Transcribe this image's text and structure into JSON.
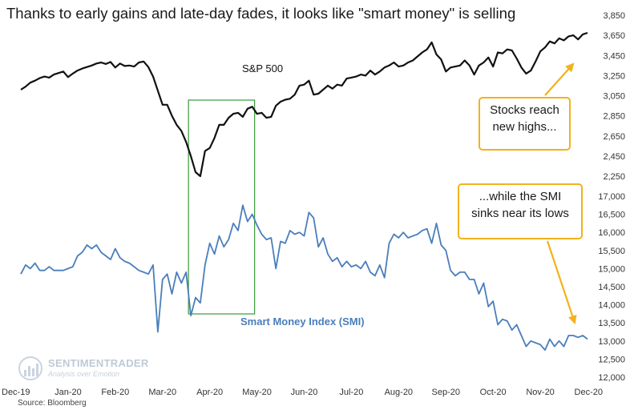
{
  "title": "Thanks to early gains and late-day fades, it looks like \"smart money\" is selling",
  "source": "Source: Bloomberg",
  "watermark": {
    "name": "SENTIMENTRADER",
    "tagline": "Analysis over Emotion"
  },
  "annotations": {
    "stocks": [
      "Stocks reach",
      "new highs..."
    ],
    "smi": [
      "...while the SMI",
      "sinks near its lows"
    ]
  },
  "colors": {
    "spx": "#111111",
    "smi": "#4a7ebb",
    "highlight": "#3a9a3a",
    "callout": "#f2b21d"
  },
  "chart_data": {
    "type": "line",
    "title": "Thanks to early gains and late-day fades, it looks like \"smart money\" is selling",
    "xlabel": "",
    "ylabel": "",
    "x_ticks": [
      "Dec-19",
      "Jan-20",
      "Feb-20",
      "Mar-20",
      "Apr-20",
      "May-20",
      "Jun-20",
      "Jul-20",
      "Aug-20",
      "Sep-20",
      "Oct-20",
      "Nov-20",
      "Dec-20"
    ],
    "panels": [
      {
        "name": "S&P 500",
        "label": "S&P 500",
        "ylim": [
          2250,
          3850
        ],
        "y_ticks": [
          "2,250",
          "2,450",
          "2,650",
          "2,850",
          "3,050",
          "3,250",
          "3,450",
          "3,650",
          "3,850"
        ],
        "y_tick_values": [
          2250,
          2450,
          2650,
          2850,
          3050,
          3250,
          3450,
          3650,
          3850
        ],
        "x_month": [
          0,
          0.1,
          0.2,
          0.3,
          0.4,
          0.5,
          0.6,
          0.7,
          0.8,
          0.9,
          1.0,
          1.1,
          1.2,
          1.3,
          1.4,
          1.5,
          1.6,
          1.7,
          1.8,
          1.9,
          2.0,
          2.1,
          2.2,
          2.3,
          2.4,
          2.5,
          2.6,
          2.7,
          2.8,
          2.9,
          3.0,
          3.1,
          3.2,
          3.3,
          3.4,
          3.5,
          3.6,
          3.7,
          3.8,
          3.9,
          4.0,
          4.1,
          4.2,
          4.3,
          4.4,
          4.5,
          4.6,
          4.7,
          4.8,
          4.9,
          5.0,
          5.1,
          5.2,
          5.3,
          5.4,
          5.5,
          5.6,
          5.7,
          5.8,
          5.9,
          6.0,
          6.1,
          6.2,
          6.3,
          6.4,
          6.5,
          6.6,
          6.7,
          6.8,
          6.9,
          7.0,
          7.1,
          7.2,
          7.3,
          7.4,
          7.5,
          7.6,
          7.7,
          7.8,
          7.9,
          8.0,
          8.1,
          8.2,
          8.3,
          8.4,
          8.5,
          8.6,
          8.7,
          8.8,
          8.9,
          9.0,
          9.1,
          9.2,
          9.3,
          9.4,
          9.5,
          9.6,
          9.7,
          9.8,
          9.9,
          10.0,
          10.1,
          10.2,
          10.3,
          10.4,
          10.5,
          10.6,
          10.7,
          10.8,
          10.9,
          11.0,
          11.1,
          11.2,
          11.3,
          11.4,
          11.5,
          11.6,
          11.7,
          11.8,
          11.9,
          12.0
        ],
        "values": [
          3110,
          3140,
          3180,
          3200,
          3225,
          3240,
          3230,
          3260,
          3275,
          3290,
          3235,
          3270,
          3300,
          3320,
          3335,
          3350,
          3370,
          3380,
          3365,
          3385,
          3330,
          3370,
          3345,
          3350,
          3340,
          3380,
          3390,
          3335,
          3240,
          3100,
          2960,
          2960,
          2850,
          2760,
          2700,
          2590,
          2450,
          2290,
          2250,
          2500,
          2530,
          2630,
          2760,
          2760,
          2830,
          2870,
          2880,
          2840,
          2920,
          2940,
          2870,
          2880,
          2830,
          2840,
          2950,
          2990,
          3010,
          3020,
          3060,
          3150,
          3160,
          3200,
          3060,
          3070,
          3110,
          3150,
          3120,
          3160,
          3150,
          3220,
          3230,
          3240,
          3260,
          3250,
          3300,
          3260,
          3290,
          3330,
          3350,
          3380,
          3340,
          3350,
          3380,
          3400,
          3440,
          3480,
          3510,
          3580,
          3460,
          3410,
          3290,
          3330,
          3340,
          3350,
          3400,
          3350,
          3260,
          3350,
          3380,
          3430,
          3340,
          3480,
          3470,
          3510,
          3500,
          3420,
          3330,
          3270,
          3300,
          3390,
          3490,
          3530,
          3590,
          3570,
          3620,
          3600,
          3640,
          3650,
          3610,
          3660,
          3675
        ]
      },
      {
        "name": "Smart Money Index (SMI)",
        "label": "Smart Money Index (SMI)",
        "ylim": [
          12000,
          17000
        ],
        "y_ticks": [
          "12,000",
          "12,500",
          "13,000",
          "13,500",
          "14,000",
          "14,500",
          "15,000",
          "15,500",
          "16,000",
          "16,500",
          "17,000"
        ],
        "y_tick_values": [
          12000,
          12500,
          13000,
          13500,
          14000,
          14500,
          15000,
          15500,
          16000,
          16500,
          17000
        ],
        "x_month": [
          0,
          0.1,
          0.2,
          0.3,
          0.4,
          0.5,
          0.6,
          0.7,
          0.8,
          0.9,
          1.0,
          1.1,
          1.2,
          1.3,
          1.4,
          1.5,
          1.6,
          1.7,
          1.8,
          1.9,
          2.0,
          2.1,
          2.2,
          2.3,
          2.4,
          2.5,
          2.6,
          2.7,
          2.8,
          2.9,
          3.0,
          3.1,
          3.2,
          3.3,
          3.4,
          3.5,
          3.6,
          3.7,
          3.8,
          3.9,
          4.0,
          4.1,
          4.2,
          4.3,
          4.4,
          4.5,
          4.6,
          4.7,
          4.8,
          4.9,
          5.0,
          5.1,
          5.2,
          5.3,
          5.4,
          5.5,
          5.6,
          5.7,
          5.8,
          5.9,
          6.0,
          6.1,
          6.2,
          6.3,
          6.4,
          6.5,
          6.6,
          6.7,
          6.8,
          6.9,
          7.0,
          7.1,
          7.2,
          7.3,
          7.4,
          7.5,
          7.6,
          7.7,
          7.8,
          7.9,
          8.0,
          8.1,
          8.2,
          8.3,
          8.4,
          8.5,
          8.6,
          8.7,
          8.8,
          8.9,
          9.0,
          9.1,
          9.2,
          9.3,
          9.4,
          9.5,
          9.6,
          9.7,
          9.8,
          9.9,
          10.0,
          10.1,
          10.2,
          10.3,
          10.4,
          10.5,
          10.6,
          10.7,
          10.8,
          10.9,
          11.0,
          11.1,
          11.2,
          11.3,
          11.4,
          11.5,
          11.6,
          11.7,
          11.8,
          11.9,
          12.0
        ],
        "values": [
          14850,
          15100,
          15000,
          15150,
          14950,
          14950,
          15050,
          14950,
          14950,
          14950,
          15000,
          15050,
          15350,
          15450,
          15650,
          15550,
          15650,
          15450,
          15350,
          15250,
          15550,
          15300,
          15200,
          15150,
          15050,
          14950,
          14900,
          14850,
          15100,
          13250,
          14700,
          14850,
          14300,
          14900,
          14600,
          14900,
          13700,
          14200,
          14050,
          15100,
          15700,
          15400,
          15900,
          15600,
          15800,
          16250,
          16050,
          16750,
          16300,
          16500,
          16200,
          15950,
          15800,
          15850,
          15000,
          15750,
          15700,
          16050,
          15950,
          16000,
          15900,
          16550,
          16400,
          15600,
          15850,
          15400,
          15200,
          15300,
          15050,
          15200,
          15050,
          15100,
          15000,
          15200,
          14900,
          14800,
          15100,
          14750,
          15700,
          15950,
          15850,
          16000,
          15850,
          15900,
          15950,
          16050,
          16100,
          15700,
          16250,
          15650,
          15500,
          14950,
          14800,
          14900,
          14900,
          14700,
          14700,
          14300,
          14600,
          13950,
          14100,
          13450,
          13600,
          13550,
          13300,
          13450,
          13150,
          12850,
          13000,
          12950,
          12900,
          12750,
          13050,
          12850,
          13000,
          12850,
          13150,
          13150,
          13100,
          13150,
          13050
        ]
      }
    ],
    "highlight_range": {
      "x_start_month": 3.55,
      "x_end_month": 4.95,
      "label": ""
    }
  }
}
